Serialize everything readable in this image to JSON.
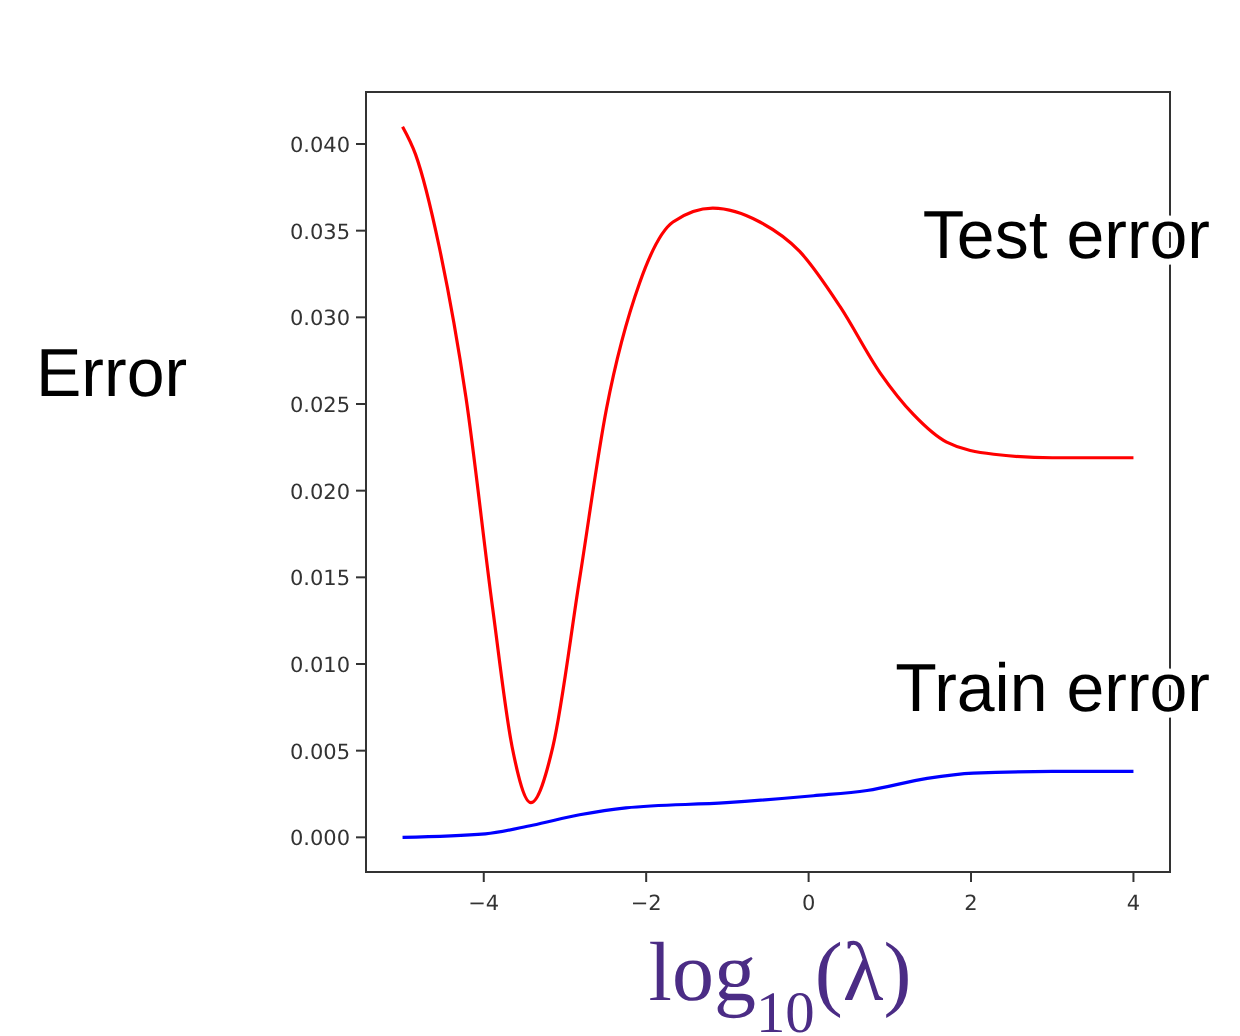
{
  "chart_data": {
    "type": "line",
    "xlabel": "log$_{10}$(λ)",
    "ylabel": "Error",
    "xlim": [
      -5.45,
      4.45
    ],
    "xticks": [
      {
        "value": -4,
        "label": "−4"
      },
      {
        "value": -2,
        "label": "−2"
      },
      0,
      2,
      4
    ],
    "ylim": [
      -0.002,
      0.043
    ],
    "yticks": [
      {
        "value": 0,
        "label": "0.000"
      },
      {
        "value": 0.005,
        "label": "0.005"
      },
      {
        "value": 0.01,
        "label": "0.010"
      },
      {
        "value": 0.015,
        "label": "0.015"
      },
      {
        "value": 0.02,
        "label": "0.020"
      },
      {
        "value": 0.025,
        "label": "0.025"
      },
      {
        "value": 0.03,
        "label": "0.030"
      },
      {
        "value": 0.035,
        "label": "0.035"
      },
      {
        "value": 0.04,
        "label": "0.040"
      }
    ],
    "grid": false,
    "series": [
      {
        "name": "Test error",
        "color": "#ff0000",
        "x": [
          -5,
          -4.84,
          -4.55,
          -4.22,
          -3.89,
          -3.65,
          -3.42,
          -3.15,
          -2.82,
          -2.49,
          -2.08,
          -1.67,
          -1.18,
          -0.6,
          -0.11,
          0.39,
          0.88,
          1.29,
          1.7,
          2.28,
          3,
          4
        ],
        "values": [
          0.041,
          0.0394,
          0.0341,
          0.0254,
          0.0132,
          0.0052,
          0.002,
          0.0052,
          0.0149,
          0.0247,
          0.032,
          0.0355,
          0.0363,
          0.0355,
          0.0338,
          0.0306,
          0.0268,
          0.0244,
          0.0228,
          0.0221,
          0.0219,
          0.0219
        ]
      },
      {
        "name": "Train error",
        "color": "#0000ff",
        "x": [
          -5,
          -3.98,
          -3.4,
          -2.82,
          -2.25,
          -1.01,
          0.06,
          0.72,
          1.46,
          2.03,
          3,
          4
        ],
        "values": [
          0,
          0.0002,
          0.0007,
          0.0013,
          0.0017,
          0.002,
          0.0024,
          0.0027,
          0.0034,
          0.0037,
          0.0038,
          0.0038
        ]
      }
    ]
  }
}
